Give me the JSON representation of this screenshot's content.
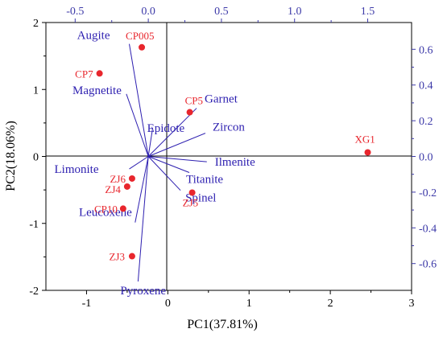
{
  "chart_data": {
    "type": "scatter",
    "subtype": "pca-biplot",
    "xlabel": "PC1(37.81%)",
    "ylabel": "PC2(18.06%)",
    "xlim": [
      -1.5,
      3
    ],
    "ylim": [
      -2,
      2
    ],
    "x_ticks": [
      "-1",
      "0",
      "1",
      "2",
      "3"
    ],
    "y_ticks": [
      "-2",
      "-1",
      "0",
      "1",
      "2"
    ],
    "top_axis": {
      "xlim": [
        -0.7,
        1.8
      ],
      "ticks": [
        "-0.5",
        "0.0",
        "0.5",
        "1.0",
        "1.5"
      ],
      "tick_values": [
        -0.5,
        0.0,
        0.5,
        1.0,
        1.5
      ]
    },
    "right_axis": {
      "ylim": [
        -0.75,
        0.75
      ],
      "ticks": [
        "0.6",
        "0.4",
        "0.2",
        "0.0",
        "-0.2",
        "-0.4",
        "-0.6"
      ],
      "tick_values": [
        0.6,
        0.4,
        0.2,
        0.0,
        -0.2,
        -0.4,
        -0.6
      ]
    },
    "grid": false,
    "colors": {
      "samples": "#e8262d",
      "loadings": "#2d1fb0",
      "secondary_axes": "#3d3aa8"
    },
    "samples": [
      {
        "name": "CP005",
        "x": -0.32,
        "y": 1.63
      },
      {
        "name": "CP7",
        "x": -0.84,
        "y": 1.24
      },
      {
        "name": "CP5",
        "x": 0.27,
        "y": 0.66
      },
      {
        "name": "XG1",
        "x": 2.46,
        "y": 0.06
      },
      {
        "name": "ZJ6",
        "x": -0.44,
        "y": -0.33
      },
      {
        "name": "ZJ4",
        "x": -0.5,
        "y": -0.45
      },
      {
        "name": "ZJ5",
        "x": 0.3,
        "y": -0.54
      },
      {
        "name": "CP10",
        "x": -0.55,
        "y": -0.78
      },
      {
        "name": "ZJ3",
        "x": -0.44,
        "y": -1.49
      }
    ],
    "loadings": [
      {
        "name": "Augite",
        "x": -0.13,
        "y": 0.63
      },
      {
        "name": "Magnetite",
        "x": -0.15,
        "y": 0.35
      },
      {
        "name": "Garnet",
        "x": 0.33,
        "y": 0.27
      },
      {
        "name": "Epidote",
        "x": 0.03,
        "y": 0.16
      },
      {
        "name": "Zircon",
        "x": 0.39,
        "y": 0.13
      },
      {
        "name": "Ilmenite",
        "x": 0.4,
        "y": -0.03
      },
      {
        "name": "Titanite",
        "x": 0.28,
        "y": -0.09
      },
      {
        "name": "Spinel",
        "x": 0.22,
        "y": -0.19
      },
      {
        "name": "Limonite",
        "x": -0.13,
        "y": -0.07
      },
      {
        "name": "Leucoxene",
        "x": -0.09,
        "y": -0.37
      },
      {
        "name": "Pyroxene",
        "x": -0.07,
        "y": -0.7
      }
    ]
  }
}
